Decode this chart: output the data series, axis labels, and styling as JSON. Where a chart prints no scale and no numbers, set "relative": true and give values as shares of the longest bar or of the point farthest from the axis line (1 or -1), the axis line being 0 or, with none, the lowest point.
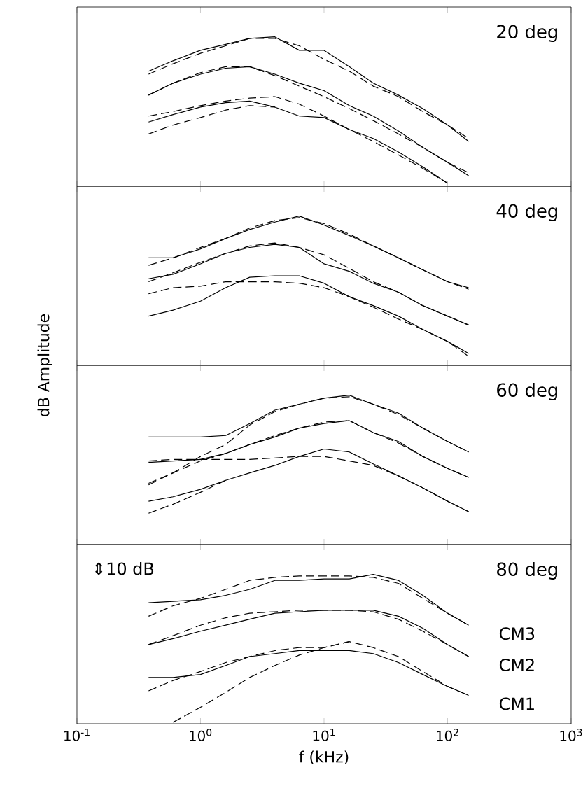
{
  "chart_data": [
    {
      "type": "line",
      "relative": true,
      "log": "x",
      "tick_labels": false,
      "title": "20 deg",
      "xlim": [
        0.1,
        1000
      ],
      "xticks": [
        {
          "value": 0.1,
          "label": null
        },
        {
          "value": 1,
          "label": null
        },
        {
          "value": 10,
          "label": null
        },
        {
          "value": 100,
          "label": null
        },
        {
          "value": 1000,
          "label": null
        }
      ],
      "x": [
        0.38,
        0.6,
        1,
        1.6,
        2.5,
        4,
        6.3,
        10,
        16,
        25,
        40,
        63,
        100,
        148
      ],
      "series": [
        {
          "color": "#000000",
          "line_style": "solid",
          "values": [
            0.77,
            0.84,
            0.91,
            0.95,
            0.99,
            1.0,
            0.91,
            0.91,
            0.8,
            0.69,
            0.61,
            0.52,
            0.41,
            0.3
          ]
        },
        {
          "color": "#000000",
          "line_style": "solid",
          "values": [
            0.61,
            0.69,
            0.75,
            0.79,
            0.8,
            0.75,
            0.69,
            0.64,
            0.54,
            0.47,
            0.37,
            0.26,
            0.16,
            0.07
          ]
        },
        {
          "color": "#000000",
          "line_style": "solid",
          "values": [
            0.43,
            0.48,
            0.53,
            0.56,
            0.57,
            0.53,
            0.47,
            0.46,
            0.38,
            0.32,
            0.23,
            0.13,
            0.02,
            null
          ]
        },
        {
          "color": "#000000",
          "line_style": "dashed",
          "values": [
            0.75,
            0.82,
            0.89,
            0.94,
            0.99,
            0.99,
            0.94,
            0.85,
            0.77,
            0.67,
            0.6,
            0.5,
            0.41,
            0.32
          ]
        },
        {
          "color": "#000000",
          "line_style": "dashed",
          "values": [
            0.61,
            0.69,
            0.76,
            0.8,
            0.8,
            0.74,
            0.67,
            0.6,
            0.52,
            0.44,
            0.35,
            0.26,
            0.16,
            0.09
          ]
        },
        {
          "color": "#000000",
          "line_style": "dashed",
          "values": [
            0.47,
            0.5,
            0.54,
            0.57,
            0.59,
            0.6,
            0.55,
            0.47,
            0.38,
            0.3,
            0.21,
            0.12,
            0.02,
            null
          ]
        },
        {
          "color": "#000000",
          "line_style": "dashed",
          "values": [
            0.35,
            0.41,
            0.46,
            0.51,
            0.54,
            0.53,
            null,
            null,
            null,
            null,
            null,
            null,
            null,
            null
          ]
        }
      ]
    },
    {
      "type": "line",
      "relative": true,
      "log": "x",
      "tick_labels": false,
      "title": "40 deg",
      "ylabel": "dB Amplitude",
      "xlim": [
        0.1,
        1000
      ],
      "xticks": [
        {
          "value": 0.1,
          "label": null
        },
        {
          "value": 1,
          "label": null
        },
        {
          "value": 10,
          "label": null
        },
        {
          "value": 100,
          "label": null
        },
        {
          "value": 1000,
          "label": null
        }
      ],
      "x": [
        0.38,
        0.6,
        1,
        1.6,
        2.5,
        4,
        6.3,
        10,
        16,
        25,
        40,
        63,
        100,
        148
      ],
      "series": [
        {
          "color": "#000000",
          "line_style": "solid",
          "values": [
            0.72,
            0.72,
            0.78,
            0.85,
            0.91,
            0.96,
            1.0,
            0.94,
            0.87,
            0.8,
            0.72,
            0.64,
            0.56,
            0.52
          ]
        },
        {
          "color": "#000000",
          "line_style": "solid",
          "values": [
            0.58,
            0.61,
            0.68,
            0.75,
            0.79,
            0.81,
            0.79,
            0.68,
            0.63,
            0.55,
            0.49,
            0.4,
            0.33,
            0.27
          ]
        },
        {
          "color": "#000000",
          "line_style": "solid",
          "values": [
            0.33,
            0.37,
            0.43,
            0.52,
            0.59,
            0.6,
            0.6,
            0.55,
            0.46,
            0.4,
            0.33,
            0.24,
            0.16,
            0.08
          ]
        },
        {
          "color": "#000000",
          "line_style": "dashed",
          "values": [
            0.67,
            0.72,
            0.79,
            0.85,
            0.92,
            0.97,
            0.99,
            0.95,
            0.88,
            0.8,
            0.72,
            0.64,
            0.56,
            0.51
          ]
        },
        {
          "color": "#000000",
          "line_style": "dashed",
          "values": [
            0.56,
            0.62,
            0.69,
            0.75,
            0.8,
            0.82,
            0.79,
            0.74,
            0.65,
            0.56,
            0.49,
            0.4,
            0.33,
            0.27
          ]
        },
        {
          "color": "#000000",
          "line_style": "dashed",
          "values": [
            0.48,
            0.52,
            0.53,
            0.56,
            0.56,
            0.56,
            0.55,
            0.52,
            0.46,
            0.39,
            0.31,
            0.24,
            0.16,
            0.06
          ]
        }
      ]
    },
    {
      "type": "line",
      "relative": true,
      "log": "x",
      "tick_labels": false,
      "title": "60 deg",
      "xlim": [
        0.1,
        1000
      ],
      "xticks": [
        {
          "value": 0.1,
          "label": null
        },
        {
          "value": 1,
          "label": null
        },
        {
          "value": 10,
          "label": null
        },
        {
          "value": 100,
          "label": null
        },
        {
          "value": 1000,
          "label": null
        }
      ],
      "x": [
        0.38,
        0.6,
        1,
        1.6,
        2.5,
        4,
        6.3,
        10,
        16,
        25,
        40,
        63,
        100,
        148
      ],
      "series": [
        {
          "color": "#000000",
          "line_style": "solid",
          "values": [
            0.72,
            0.72,
            0.72,
            0.73,
            0.81,
            0.9,
            0.94,
            0.98,
            1.0,
            0.94,
            0.88,
            0.78,
            0.69,
            0.62
          ]
        },
        {
          "color": "#000000",
          "line_style": "solid",
          "values": [
            0.55,
            0.56,
            0.57,
            0.61,
            0.67,
            0.72,
            0.78,
            0.81,
            0.83,
            0.75,
            0.69,
            0.59,
            0.51,
            0.45
          ]
        },
        {
          "color": "#000000",
          "line_style": "solid",
          "values": [
            0.29,
            0.32,
            0.37,
            0.43,
            0.48,
            0.53,
            0.59,
            0.64,
            0.62,
            0.54,
            0.46,
            0.38,
            0.29,
            0.22
          ]
        },
        {
          "color": "#000000",
          "line_style": "dashed",
          "values": [
            0.41,
            0.48,
            0.59,
            0.67,
            0.8,
            0.89,
            0.94,
            0.98,
            0.99,
            0.94,
            0.87,
            0.78,
            0.69,
            0.62
          ]
        },
        {
          "color": "#000000",
          "line_style": "dashed",
          "values": [
            0.4,
            0.48,
            0.56,
            0.61,
            0.67,
            0.73,
            0.78,
            0.82,
            0.83,
            0.75,
            0.68,
            0.59,
            0.51,
            0.45
          ]
        },
        {
          "color": "#000000",
          "line_style": "dashed",
          "values": [
            0.56,
            0.57,
            0.57,
            0.57,
            0.57,
            0.58,
            0.59,
            0.59,
            0.56,
            0.53,
            0.46,
            0.38,
            0.29,
            0.22
          ]
        },
        {
          "color": "#000000",
          "line_style": "dashed",
          "values": [
            0.21,
            0.27,
            0.35,
            0.43,
            null,
            null,
            null,
            null,
            null,
            null,
            null,
            null,
            null,
            null
          ]
        }
      ]
    },
    {
      "type": "line",
      "relative": true,
      "log": "x",
      "tick_labels": "x",
      "title": "80 deg",
      "xlabel": "f (kHz)",
      "annotations": [
        "⇕10 dB"
      ],
      "xlim": [
        0.1,
        1000
      ],
      "xticks": [
        {
          "value": 0.1,
          "label": "10$^{-1}$"
        },
        {
          "value": 1,
          "label": "10$^{0}$"
        },
        {
          "value": 10,
          "label": "10$^{1}$"
        },
        {
          "value": 100,
          "label": "10$^{2}$"
        },
        {
          "value": 1000,
          "label": "10$^{3}$"
        }
      ],
      "x": [
        0.38,
        0.6,
        1,
        1.6,
        2.5,
        4,
        6.3,
        10,
        16,
        25,
        40,
        63,
        100,
        148
      ],
      "series": [
        {
          "name": "CM3",
          "color": "#000000",
          "line_style": "solid",
          "values": [
            0.81,
            0.82,
            0.83,
            0.86,
            0.9,
            0.96,
            0.96,
            0.97,
            0.97,
            1.0,
            0.96,
            0.86,
            0.74,
            0.66
          ]
        },
        {
          "name": "CM2",
          "color": "#000000",
          "line_style": "solid",
          "values": [
            0.53,
            0.57,
            0.62,
            0.66,
            0.7,
            0.74,
            0.75,
            0.76,
            0.76,
            0.76,
            0.72,
            0.64,
            0.53,
            0.45
          ]
        },
        {
          "name": "CM1",
          "color": "#000000",
          "line_style": "solid",
          "values": [
            0.31,
            0.31,
            0.33,
            0.39,
            0.45,
            0.47,
            0.49,
            0.49,
            0.49,
            0.47,
            0.41,
            0.33,
            0.25,
            0.19
          ]
        },
        {
          "color": "#000000",
          "line_style": "dashed",
          "values": [
            0.72,
            0.79,
            0.84,
            0.9,
            0.96,
            0.98,
            0.99,
            0.99,
            0.99,
            0.98,
            0.94,
            0.84,
            0.74,
            0.66
          ]
        },
        {
          "color": "#000000",
          "line_style": "dashed",
          "values": [
            0.53,
            0.59,
            0.66,
            0.71,
            0.74,
            0.75,
            0.76,
            0.76,
            0.76,
            0.75,
            0.7,
            0.62,
            0.53,
            0.45
          ]
        },
        {
          "color": "#000000",
          "line_style": "dashed",
          "values": [
            0.22,
            0.29,
            0.35,
            0.41,
            0.45,
            0.49,
            0.51,
            0.51,
            0.55,
            0.51,
            0.45,
            0.35,
            0.25,
            0.19
          ]
        },
        {
          "color": "#000000",
          "line_style": "dashed",
          "values": [
            null,
            0.01,
            0.11,
            0.21,
            0.31,
            0.39,
            0.46,
            0.51,
            0.55,
            null,
            null,
            null,
            null,
            null
          ]
        }
      ]
    }
  ]
}
